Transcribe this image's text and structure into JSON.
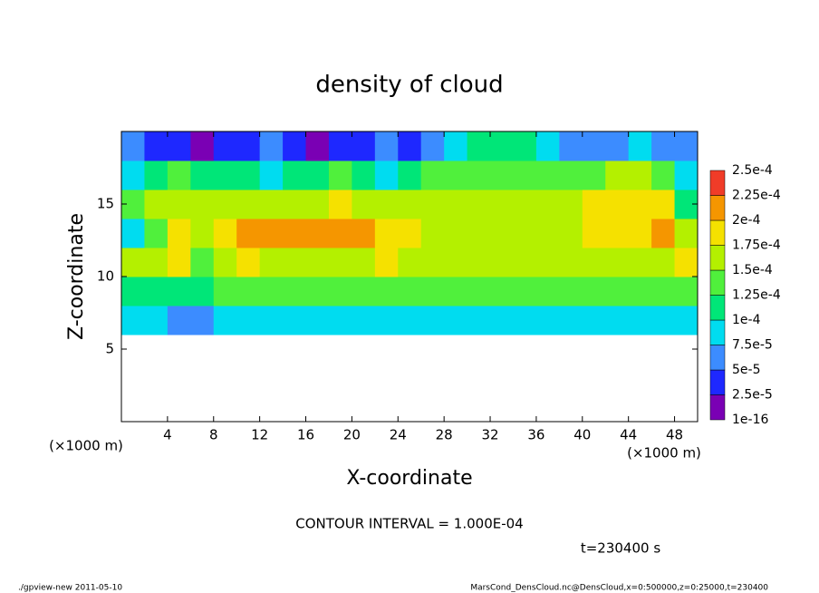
{
  "chart_data": {
    "type": "heatmap",
    "title": "density of cloud",
    "xlabel": "X-coordinate",
    "ylabel": "Z-coordinate",
    "x_unit": "(×1000 m)",
    "y_unit": "(×1000 m)",
    "xlim": [
      0,
      50
    ],
    "ylim": [
      0,
      20
    ],
    "xticks": [
      4,
      8,
      12,
      16,
      20,
      24,
      28,
      32,
      36,
      40,
      44,
      48
    ],
    "yticks": [
      5,
      10,
      15
    ],
    "x": [
      1,
      3,
      5,
      7,
      9,
      11,
      13,
      15,
      17,
      19,
      21,
      23,
      25,
      27,
      29,
      31,
      33,
      35,
      37,
      39,
      41,
      43,
      45,
      47,
      49
    ],
    "y": [
      7,
      9,
      11,
      13,
      15,
      17,
      19
    ],
    "values": [
      [
        8e-05,
        8e-05,
        7e-05,
        7e-05,
        8e-05,
        8e-05,
        8e-05,
        8e-05,
        8e-05,
        8e-05,
        8e-05,
        8e-05,
        8e-05,
        8e-05,
        8e-05,
        8e-05,
        8e-05,
        8e-05,
        8e-05,
        8e-05,
        8e-05,
        8e-05,
        8e-05,
        8e-05,
        8e-05
      ],
      [
        0.00012,
        0.00012,
        0.00011,
        0.0001,
        0.00013,
        0.00013,
        0.00013,
        0.00013,
        0.00014,
        0.00014,
        0.00014,
        0.00014,
        0.00014,
        0.00014,
        0.00014,
        0.00014,
        0.00014,
        0.00014,
        0.00014,
        0.00014,
        0.00014,
        0.00014,
        0.00014,
        0.00014,
        0.00014
      ],
      [
        0.00015,
        0.00016,
        0.00018,
        0.00014,
        0.00016,
        0.00018,
        0.00016,
        0.00017,
        0.00017,
        0.00017,
        0.00017,
        0.00018,
        0.00017,
        0.00016,
        0.00016,
        0.00016,
        0.00016,
        0.00016,
        0.00016,
        0.00016,
        0.00016,
        0.00017,
        0.00017,
        0.00017,
        0.00018
      ],
      [
        8e-05,
        0.00014,
        0.00018,
        0.00017,
        0.00019,
        0.0002,
        0.0002,
        0.00021,
        0.00021,
        0.0002,
        0.0002,
        0.00019,
        0.00018,
        0.00017,
        0.00016,
        0.00016,
        0.00016,
        0.00017,
        0.00017,
        0.00017,
        0.00018,
        0.00019,
        0.00019,
        0.0002,
        0.00016
      ],
      [
        0.00013,
        0.00016,
        0.00017,
        0.00016,
        0.00017,
        0.00017,
        0.00016,
        0.00016,
        0.00017,
        0.00018,
        0.00017,
        0.00016,
        0.00016,
        0.00015,
        0.00015,
        0.00016,
        0.00016,
        0.00016,
        0.00017,
        0.00017,
        0.00018,
        0.00018,
        0.00019,
        0.00018,
        0.0001
      ],
      [
        8e-05,
        0.00012,
        0.00013,
        0.00012,
        0.00011,
        0.0001,
        9e-05,
        0.0001,
        0.00012,
        0.00013,
        0.0001,
        9e-05,
        0.00011,
        0.00013,
        0.00014,
        0.00014,
        0.00014,
        0.00014,
        0.00014,
        0.00013,
        0.00014,
        0.00015,
        0.00016,
        0.00014,
        9e-05
      ],
      [
        5e-05,
        4e-05,
        3e-05,
        2e-05,
        3e-05,
        4e-05,
        5e-05,
        3e-05,
        2e-05,
        3e-05,
        4e-05,
        5e-05,
        4e-05,
        6e-05,
        9e-05,
        0.00011,
        0.00011,
        0.0001,
        9e-05,
        7e-05,
        5e-05,
        6e-05,
        8e-05,
        6e-05,
        5e-05
      ]
    ],
    "colorbar": {
      "levels": [
        {
          "value": 1e-16,
          "label": "1e-16"
        },
        {
          "value": 2.5e-05,
          "label": "2.5e-5"
        },
        {
          "value": 5e-05,
          "label": "5e-5"
        },
        {
          "value": 7.5e-05,
          "label": "7.5e-5"
        },
        {
          "value": 0.0001,
          "label": "1e-4"
        },
        {
          "value": 0.000125,
          "label": "1.25e-4"
        },
        {
          "value": 0.00015,
          "label": "1.5e-4"
        },
        {
          "value": 0.000175,
          "label": "1.75e-4"
        },
        {
          "value": 0.0002,
          "label": "2e-4"
        },
        {
          "value": 0.000225,
          "label": "2.25e-4"
        },
        {
          "value": 0.00025,
          "label": "2.5e-4"
        }
      ],
      "colors": [
        "#7a00b4",
        "#1e28ff",
        "#3c8cff",
        "#00dcf0",
        "#00e678",
        "#50f03c",
        "#b4f000",
        "#f5e100",
        "#f59600",
        "#f03c28"
      ]
    },
    "annotations": {
      "contour_interval": "CONTOUR INTERVAL = 1.000E-04",
      "time": "t=230400 s",
      "footer_left": "./gpview-new  2011-05-10",
      "footer_right": "MarsCond_DensCloud.nc@DensCloud,x=0:500000,z=0:25000,t=230400"
    }
  }
}
